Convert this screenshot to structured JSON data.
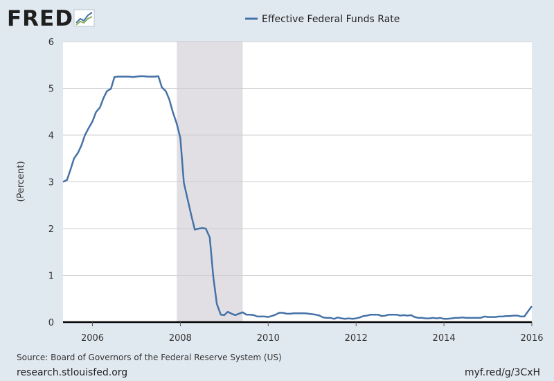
{
  "logo": {
    "text": "FRED"
  },
  "footer": {
    "source": "Source: Board of Governors of the Federal Reserve System (US)",
    "site": "research.stlouisfed.org",
    "shortlink": "myf.red/g/3CxH"
  },
  "colors": {
    "series": "#4572a7",
    "recession": "#e1dfe4",
    "background": "#e1e9f0",
    "grid": "#cccccc"
  },
  "chart_data": {
    "type": "line",
    "title": "",
    "ylabel": "(Percent)",
    "xlabel": "",
    "xlim": [
      2005.33,
      2016.0
    ],
    "ylim": [
      0,
      6
    ],
    "yticks": [
      0,
      1,
      2,
      3,
      4,
      5,
      6
    ],
    "xticks": [
      2006,
      2008,
      2010,
      2012,
      2014,
      2016
    ],
    "recession": [
      2007.92,
      2009.42
    ],
    "legend": {
      "position": "top-center"
    },
    "series": [
      {
        "name": "Effective Federal Funds Rate",
        "x": [
          2005.33,
          2005.42,
          2005.5,
          2005.58,
          2005.67,
          2005.75,
          2005.83,
          2005.92,
          2006.0,
          2006.08,
          2006.17,
          2006.25,
          2006.33,
          2006.42,
          2006.5,
          2006.58,
          2006.67,
          2006.75,
          2006.83,
          2006.92,
          2007.0,
          2007.08,
          2007.17,
          2007.25,
          2007.33,
          2007.42,
          2007.5,
          2007.58,
          2007.67,
          2007.75,
          2007.83,
          2007.92,
          2008.0,
          2008.08,
          2008.17,
          2008.25,
          2008.33,
          2008.42,
          2008.5,
          2008.58,
          2008.67,
          2008.75,
          2008.83,
          2008.92,
          2009.0,
          2009.08,
          2009.17,
          2009.25,
          2009.33,
          2009.42,
          2009.5,
          2009.58,
          2009.67,
          2009.75,
          2009.83,
          2009.92,
          2010.0,
          2010.08,
          2010.17,
          2010.25,
          2010.33,
          2010.42,
          2010.5,
          2010.58,
          2010.67,
          2010.75,
          2010.83,
          2010.92,
          2011.0,
          2011.08,
          2011.17,
          2011.25,
          2011.33,
          2011.42,
          2011.5,
          2011.58,
          2011.67,
          2011.75,
          2011.83,
          2011.92,
          2012.0,
          2012.08,
          2012.17,
          2012.25,
          2012.33,
          2012.42,
          2012.5,
          2012.58,
          2012.67,
          2012.75,
          2012.83,
          2012.92,
          2013.0,
          2013.08,
          2013.17,
          2013.25,
          2013.33,
          2013.42,
          2013.5,
          2013.58,
          2013.67,
          2013.75,
          2013.83,
          2013.92,
          2014.0,
          2014.08,
          2014.17,
          2014.25,
          2014.33,
          2014.42,
          2014.5,
          2014.58,
          2014.67,
          2014.75,
          2014.83,
          2014.92,
          2015.0,
          2015.08,
          2015.17,
          2015.25,
          2015.33,
          2015.42,
          2015.5,
          2015.58,
          2015.67,
          2015.75,
          2015.83,
          2015.92,
          2016.0
        ],
        "values": [
          3.0,
          3.04,
          3.26,
          3.5,
          3.62,
          3.78,
          4.0,
          4.16,
          4.29,
          4.49,
          4.59,
          4.79,
          4.94,
          4.99,
          5.24,
          5.25,
          5.25,
          5.25,
          5.25,
          5.24,
          5.25,
          5.26,
          5.26,
          5.25,
          5.25,
          5.25,
          5.26,
          5.02,
          4.94,
          4.76,
          4.49,
          4.24,
          3.94,
          2.98,
          2.61,
          2.28,
          1.98,
          2.0,
          2.01,
          2.0,
          1.81,
          0.97,
          0.39,
          0.16,
          0.15,
          0.22,
          0.18,
          0.15,
          0.18,
          0.21,
          0.16,
          0.16,
          0.15,
          0.12,
          0.12,
          0.12,
          0.11,
          0.13,
          0.16,
          0.2,
          0.2,
          0.18,
          0.18,
          0.19,
          0.19,
          0.19,
          0.19,
          0.18,
          0.17,
          0.16,
          0.14,
          0.1,
          0.09,
          0.09,
          0.07,
          0.1,
          0.08,
          0.07,
          0.08,
          0.07,
          0.08,
          0.1,
          0.13,
          0.14,
          0.16,
          0.16,
          0.16,
          0.13,
          0.14,
          0.16,
          0.16,
          0.16,
          0.14,
          0.15,
          0.14,
          0.15,
          0.11,
          0.09,
          0.09,
          0.08,
          0.08,
          0.09,
          0.08,
          0.09,
          0.07,
          0.07,
          0.08,
          0.09,
          0.09,
          0.1,
          0.09,
          0.09,
          0.09,
          0.09,
          0.09,
          0.12,
          0.11,
          0.11,
          0.11,
          0.12,
          0.12,
          0.13,
          0.13,
          0.14,
          0.14,
          0.12,
          0.12,
          0.24,
          0.34
        ]
      }
    ]
  }
}
